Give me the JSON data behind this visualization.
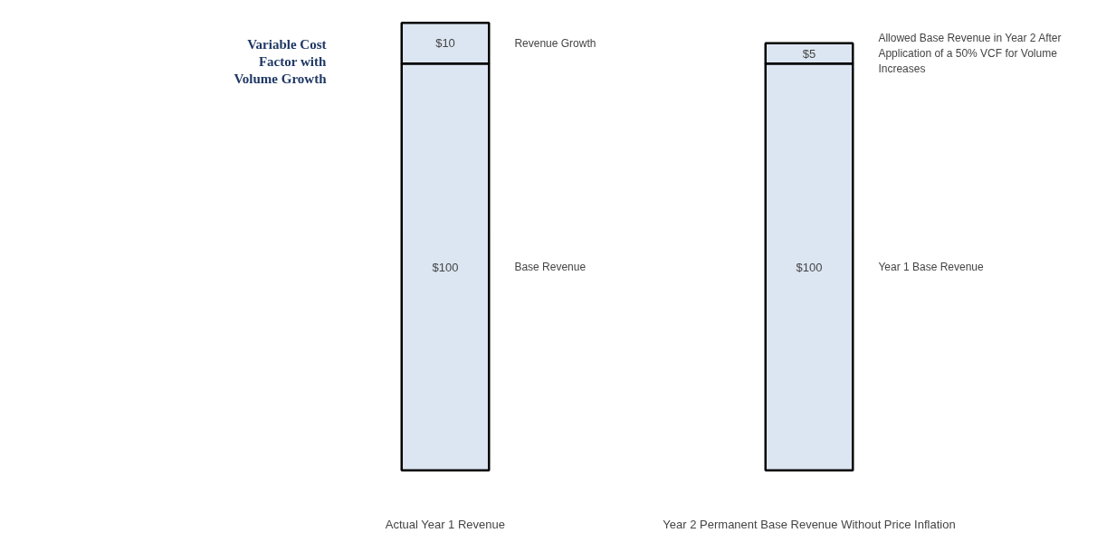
{
  "chart_data": {
    "type": "bar",
    "stacked": true,
    "categories": [
      "Actual Year 1 Revenue",
      "Year 2 Permanent Base Revenue Without Price Inflation"
    ],
    "series": [
      {
        "color": "#dce6f2",
        "values": [
          100,
          100
        ],
        "value_labels": [
          "$100",
          "$100"
        ]
      },
      {
        "color": "#dce6f2",
        "values": [
          10,
          5
        ],
        "value_labels": [
          "$10",
          "$5"
        ]
      }
    ],
    "annotations": [
      "Variable Cost Factor with Volume Growth",
      "Revenue Growth",
      "Base Revenue",
      "Allowed Base Revenue in Year 2 After Application of a 50% VCF for Volume Increases",
      "Year 1 Base Revenue"
    ],
    "grid": false
  }
}
